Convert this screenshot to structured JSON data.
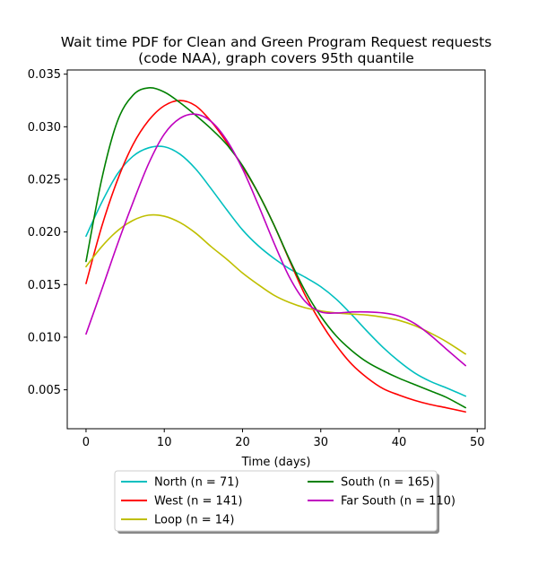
{
  "chart_data": {
    "type": "line",
    "title_lines": [
      "Wait time PDF for Clean and Green Program Request  requests",
      "(code NAA), graph covers 95th quantile"
    ],
    "xlabel": "Time (days)",
    "ylabel": "",
    "xlim": [
      -2.4,
      51
    ],
    "ylim": [
      0.0013,
      0.0354
    ],
    "xticks": [
      0,
      10,
      20,
      30,
      40,
      50
    ],
    "yticks": [
      0.005,
      0.01,
      0.015,
      0.02,
      0.025,
      0.03,
      0.035
    ],
    "ytick_labels": [
      "0.005",
      "0.010",
      "0.015",
      "0.020",
      "0.025",
      "0.030",
      "0.035"
    ],
    "grid": false,
    "legend_position": "below plot, 2 columns",
    "series": [
      {
        "name": "North (n = 71)",
        "color": "#00bfbf",
        "x": [
          0,
          2,
          4,
          6,
          8,
          10,
          12,
          14,
          16,
          18,
          20,
          22,
          24,
          26,
          28,
          30,
          32,
          34,
          36,
          38,
          40,
          42,
          44,
          46,
          48.5
        ],
        "y": [
          0.0196,
          0.0228,
          0.0255,
          0.0272,
          0.028,
          0.0281,
          0.0274,
          0.026,
          0.0241,
          0.0221,
          0.0202,
          0.0187,
          0.0175,
          0.0165,
          0.0157,
          0.0148,
          0.0136,
          0.0121,
          0.0105,
          0.009,
          0.0077,
          0.0066,
          0.0058,
          0.0052,
          0.0044
        ]
      },
      {
        "name": "West (n = 141)",
        "color": "#ff0000",
        "x": [
          0,
          2,
          4,
          6,
          8,
          10,
          12,
          14,
          16,
          18,
          20,
          22,
          24,
          26,
          28,
          30,
          32,
          34,
          36,
          38,
          40,
          42,
          44,
          46,
          48.5
        ],
        "y": [
          0.0151,
          0.0205,
          0.0249,
          0.0283,
          0.0306,
          0.032,
          0.0325,
          0.032,
          0.0305,
          0.0285,
          0.0262,
          0.0237,
          0.0207,
          0.0173,
          0.014,
          0.0114,
          0.0092,
          0.0074,
          0.0061,
          0.0051,
          0.0045,
          0.004,
          0.0036,
          0.0033,
          0.0029
        ]
      },
      {
        "name": "Loop (n = 14)",
        "color": "#bfbf00",
        "x": [
          0,
          2,
          4,
          6,
          8,
          10,
          12,
          14,
          16,
          18,
          20,
          22,
          24,
          26,
          28,
          30,
          32,
          34,
          36,
          38,
          40,
          42,
          44,
          46,
          48.5
        ],
        "y": [
          0.0167,
          0.0186,
          0.0201,
          0.0211,
          0.0216,
          0.0215,
          0.0209,
          0.0199,
          0.0186,
          0.0174,
          0.0161,
          0.015,
          0.014,
          0.0133,
          0.0128,
          0.0125,
          0.0123,
          0.0122,
          0.0121,
          0.0119,
          0.0116,
          0.0111,
          0.0104,
          0.0096,
          0.0084
        ]
      },
      {
        "name": "South (n = 165)",
        "color": "#008000",
        "x": [
          0,
          2,
          4,
          6,
          8,
          10,
          12,
          14,
          16,
          18,
          20,
          22,
          24,
          26,
          28,
          30,
          32,
          34,
          36,
          38,
          40,
          42,
          44,
          46,
          48.5
        ],
        "y": [
          0.0172,
          0.025,
          0.0305,
          0.033,
          0.0337,
          0.0333,
          0.0323,
          0.0311,
          0.0298,
          0.0283,
          0.0263,
          0.0237,
          0.0207,
          0.0174,
          0.0144,
          0.012,
          0.0101,
          0.0087,
          0.0076,
          0.0068,
          0.0061,
          0.0055,
          0.0049,
          0.0043,
          0.0033
        ]
      },
      {
        "name": "Far South (n = 110)",
        "color": "#bf00bf",
        "x": [
          0,
          2,
          4,
          6,
          8,
          10,
          12,
          14,
          16,
          18,
          20,
          22,
          24,
          26,
          28,
          30,
          32,
          34,
          36,
          38,
          40,
          42,
          44,
          46,
          48.5
        ],
        "y": [
          0.0103,
          0.0145,
          0.0188,
          0.0228,
          0.0265,
          0.0293,
          0.0308,
          0.0312,
          0.0305,
          0.0287,
          0.026,
          0.0226,
          0.019,
          0.0157,
          0.0134,
          0.0124,
          0.0123,
          0.0124,
          0.0124,
          0.0123,
          0.012,
          0.0113,
          0.0102,
          0.0089,
          0.0073
        ]
      }
    ],
    "legend_order": [
      0,
      1,
      2,
      3,
      4
    ]
  }
}
